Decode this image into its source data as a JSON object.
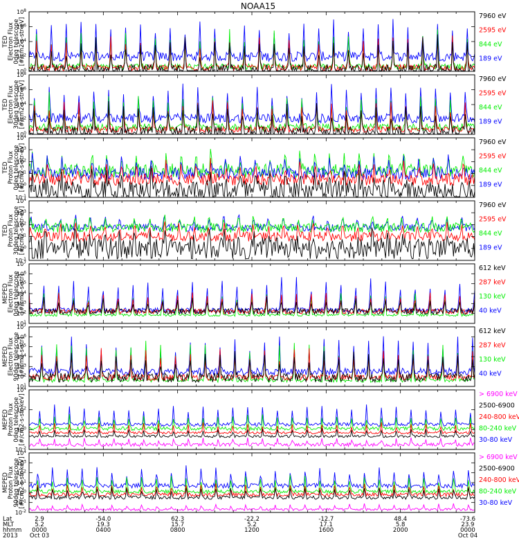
{
  "title": "NOAA15",
  "colors": {
    "blue": "#0000ff",
    "red": "#ff0000",
    "green": "#00ee00",
    "black": "#000000",
    "magenta": "#ff00ff"
  },
  "panels": [
    {
      "id": "ted-e-0",
      "ylabel": [
        "TED",
        "Electron Flux",
        "0deg telescope",
        "[#/cm2-s-str-eV]"
      ],
      "yticks": [
        "10^0",
        "10^2",
        "10^4",
        "10^6",
        "10^8"
      ],
      "legend": [
        {
          "text": "7960 eV",
          "color": "black"
        },
        {
          "text": "2595 eV",
          "color": "red"
        },
        {
          "text": "844 eV",
          "color": "green"
        },
        {
          "text": "189 eV",
          "color": "blue"
        }
      ],
      "series": [
        {
          "color": "blue",
          "base": 0.25,
          "peak": 0.85,
          "noise": 0.08
        },
        {
          "color": "green",
          "base": 0.08,
          "peak": 0.7,
          "noise": 0.05
        },
        {
          "color": "red",
          "base": 0.06,
          "peak": 0.6,
          "noise": 0.05
        },
        {
          "color": "black",
          "base": 0.0,
          "peak": 0.55,
          "noise": 0.12
        }
      ]
    },
    {
      "id": "ted-e-30",
      "ylabel": [
        "TED",
        "Electron Flux",
        "30deg telescope",
        "[#/cm2-s-str-eV]"
      ],
      "yticks": [
        "10^0",
        "10^2",
        "10^4",
        "10^6",
        "10^8"
      ],
      "legend": [
        {
          "text": "7960 eV",
          "color": "black"
        },
        {
          "text": "2595 eV",
          "color": "red"
        },
        {
          "text": "844 eV",
          "color": "green"
        },
        {
          "text": "189 eV",
          "color": "blue"
        }
      ],
      "series": [
        {
          "color": "blue",
          "base": 0.27,
          "peak": 0.85,
          "noise": 0.08
        },
        {
          "color": "green",
          "base": 0.12,
          "peak": 0.7,
          "noise": 0.06
        },
        {
          "color": "red",
          "base": 0.08,
          "peak": 0.6,
          "noise": 0.05
        },
        {
          "color": "black",
          "base": 0.02,
          "peak": 0.5,
          "noise": 0.12
        }
      ]
    },
    {
      "id": "ted-p-0",
      "ylabel": [
        "TED",
        "Proton Flux",
        "0deg telescope",
        "[#/cm2-s-str-eV]"
      ],
      "yticks": [
        "10^-1",
        "10^0",
        "10^1",
        "10^2",
        "10^3",
        "10^4"
      ],
      "legend": [
        {
          "text": "7960 eV",
          "color": "black"
        },
        {
          "text": "2595 eV",
          "color": "red"
        },
        {
          "text": "844 eV",
          "color": "green"
        },
        {
          "text": "189 eV",
          "color": "blue"
        }
      ],
      "series": [
        {
          "color": "green",
          "base": 0.45,
          "peak": 0.82,
          "noise": 0.12
        },
        {
          "color": "blue",
          "base": 0.4,
          "peak": 0.75,
          "noise": 0.1
        },
        {
          "color": "red",
          "base": 0.3,
          "peak": 0.65,
          "noise": 0.1
        },
        {
          "color": "black",
          "base": 0.1,
          "peak": 0.5,
          "noise": 0.2
        }
      ]
    },
    {
      "id": "ted-p-30",
      "ylabel": [
        "TED",
        "Proton Flux",
        "30deg telescope",
        "[#/cm2-s-str-eV]"
      ],
      "yticks": [
        "10^-1",
        "10^0",
        "10^1",
        "10^2",
        "10^3",
        "10^4"
      ],
      "legend": [
        {
          "text": "7960 eV",
          "color": "black"
        },
        {
          "text": "2595 eV",
          "color": "red"
        },
        {
          "text": "844 eV",
          "color": "green"
        },
        {
          "text": "189 eV",
          "color": "blue"
        }
      ],
      "series": [
        {
          "color": "blue",
          "base": 0.55,
          "peak": 0.82,
          "noise": 0.06
        },
        {
          "color": "green",
          "base": 0.55,
          "peak": 0.78,
          "noise": 0.08
        },
        {
          "color": "red",
          "base": 0.4,
          "peak": 0.7,
          "noise": 0.08
        },
        {
          "color": "black",
          "base": 0.2,
          "peak": 0.55,
          "noise": 0.18
        }
      ]
    },
    {
      "id": "meped-e-0",
      "ylabel": [
        "MEPED",
        "Electron Flux",
        "0deg telescope",
        "[#/cm2-s-str]"
      ],
      "yticks": [
        "10^1",
        "10^2",
        "10^3",
        "10^4",
        "10^5",
        "10^6",
        "10^7"
      ],
      "legend": [
        {
          "text": "612 keV",
          "color": "black"
        },
        {
          "text": "287 keV",
          "color": "red"
        },
        {
          "text": "130 keV",
          "color": "green"
        },
        {
          "text": "40 keV",
          "color": "blue"
        }
      ],
      "series": [
        {
          "color": "blue",
          "base": 0.22,
          "peak": 0.85,
          "noise": 0.04
        },
        {
          "color": "green",
          "base": 0.14,
          "peak": 0.6,
          "noise": 0.02
        },
        {
          "color": "red",
          "base": 0.2,
          "peak": 0.55,
          "noise": 0.04
        },
        {
          "color": "black",
          "base": 0.2,
          "peak": 0.45,
          "noise": 0.05
        }
      ]
    },
    {
      "id": "meped-e-90",
      "ylabel": [
        "MEPED",
        "Electron Flux",
        "90deg telescope",
        "[#/cm2-s-str]"
      ],
      "yticks": [
        "10^1",
        "10^2",
        "10^3",
        "10^4",
        "10^5",
        "10^6",
        "10^7"
      ],
      "legend": [
        {
          "text": "612 keV",
          "color": "black"
        },
        {
          "text": "287 keV",
          "color": "red"
        },
        {
          "text": "130 keV",
          "color": "green"
        },
        {
          "text": "40 keV",
          "color": "blue"
        }
      ],
      "series": [
        {
          "color": "blue",
          "base": 0.25,
          "peak": 0.85,
          "noise": 0.06
        },
        {
          "color": "green",
          "base": 0.1,
          "peak": 0.75,
          "noise": 0.03
        },
        {
          "color": "red",
          "base": 0.15,
          "peak": 0.65,
          "noise": 0.05
        },
        {
          "color": "black",
          "base": 0.15,
          "peak": 0.55,
          "noise": 0.08
        }
      ]
    },
    {
      "id": "meped-p-0",
      "ylabel": [
        "MEPED",
        "Proton Flux",
        "0deg telescope",
        "[#/cm2-s-str-keV]"
      ],
      "yticks": [
        "10^-2",
        "10^0",
        "10^2",
        "10^4"
      ],
      "legend": [
        {
          "text": "> 6900 keV",
          "color": "magenta"
        },
        {
          "text": "2500-6900",
          "color": "black"
        },
        {
          "text": "240-800 keV",
          "color": "red"
        },
        {
          "text": "80-240 keV",
          "color": "green"
        },
        {
          "text": "30-80 keV",
          "color": "blue"
        }
      ],
      "series": [
        {
          "color": "blue",
          "base": 0.42,
          "peak": 0.75,
          "noise": 0.03
        },
        {
          "color": "green",
          "base": 0.35,
          "peak": 0.6,
          "noise": 0.03
        },
        {
          "color": "red",
          "base": 0.28,
          "peak": 0.45,
          "noise": 0.02
        },
        {
          "color": "black",
          "base": 0.22,
          "peak": 0.35,
          "noise": 0.02
        },
        {
          "color": "magenta",
          "base": 0.08,
          "peak": 0.2,
          "noise": 0.03
        }
      ]
    },
    {
      "id": "meped-p-90",
      "ylabel": [
        "MEPED",
        "Proton Flux",
        "90deg telescope",
        "[#/cm2-s-str-keV]"
      ],
      "yticks": [
        "10^-2",
        "10^-1",
        "10^0",
        "10^1",
        "10^2",
        "10^3",
        "10^4"
      ],
      "legend": [
        {
          "text": "> 6900 keV",
          "color": "magenta"
        },
        {
          "text": "2500-6900",
          "color": "black"
        },
        {
          "text": "240-800 keV",
          "color": "red"
        },
        {
          "text": "80-240 keV",
          "color": "green"
        },
        {
          "text": "30-80 keV",
          "color": "blue"
        }
      ],
      "series": [
        {
          "color": "blue",
          "base": 0.45,
          "peak": 0.8,
          "noise": 0.04
        },
        {
          "color": "green",
          "base": 0.35,
          "peak": 0.65,
          "noise": 0.03
        },
        {
          "color": "red",
          "base": 0.3,
          "peak": 0.5,
          "noise": 0.03
        },
        {
          "color": "black",
          "base": 0.25,
          "peak": 0.45,
          "noise": 0.03
        },
        {
          "color": "magenta",
          "base": 0.05,
          "peak": 0.15,
          "noise": 0.02
        }
      ]
    }
  ],
  "xaxis": {
    "row_labels": [
      "Lat",
      "MLT",
      "hhmm",
      "2013"
    ],
    "ticks": [
      {
        "lat": "2.9",
        "mlt": "5.2",
        "hhmm": "0000",
        "date": "Oct 03"
      },
      {
        "lat": "-54.0",
        "mlt": "19.3",
        "hhmm": "0400",
        "date": ""
      },
      {
        "lat": "62.3",
        "mlt": "15.7",
        "hhmm": "0800",
        "date": ""
      },
      {
        "lat": "-22.2",
        "mlt": "5.2",
        "hhmm": "1200",
        "date": ""
      },
      {
        "lat": "-12.7",
        "mlt": "17.1",
        "hhmm": "1600",
        "date": ""
      },
      {
        "lat": "48.4",
        "mlt": "5.8",
        "hhmm": "2000",
        "date": ""
      },
      {
        "lat": "-73.6",
        "mlt": "23.9",
        "hhmm": "0000",
        "date": "Oct 04"
      }
    ]
  },
  "chart_data": {
    "type": "line",
    "title": "NOAA15",
    "x_range": [
      "2013 Oct 03 0000",
      "2013 Oct 04 0000"
    ],
    "n_orbits": 15,
    "panels": [
      {
        "ylabel": "TED Electron Flux 0deg telescope [#/cm2-s-str-eV]",
        "ylim_log10": [
          0,
          8
        ],
        "series": [
          "7960 eV",
          "2595 eV",
          "844 eV",
          "189 eV"
        ]
      },
      {
        "ylabel": "TED Electron Flux 30deg telescope [#/cm2-s-str-eV]",
        "ylim_log10": [
          0,
          8
        ],
        "series": [
          "7960 eV",
          "2595 eV",
          "844 eV",
          "189 eV"
        ]
      },
      {
        "ylabel": "TED Proton Flux 0deg telescope [#/cm2-s-str-eV]",
        "ylim_log10": [
          -1,
          4
        ],
        "series": [
          "7960 eV",
          "2595 eV",
          "844 eV",
          "189 eV"
        ]
      },
      {
        "ylabel": "TED Proton Flux 30deg telescope [#/cm2-s-str-eV]",
        "ylim_log10": [
          -1,
          4
        ],
        "series": [
          "7960 eV",
          "2595 eV",
          "844 eV",
          "189 eV"
        ]
      },
      {
        "ylabel": "MEPED Electron Flux 0deg telescope [#/cm2-s-str]",
        "ylim_log10": [
          1,
          7
        ],
        "series": [
          "612 keV",
          "287 keV",
          "130 keV",
          "40 keV"
        ]
      },
      {
        "ylabel": "MEPED Electron Flux 90deg telescope [#/cm2-s-str]",
        "ylim_log10": [
          1,
          7
        ],
        "series": [
          "612 keV",
          "287 keV",
          "130 keV",
          "40 keV"
        ]
      },
      {
        "ylabel": "MEPED Proton Flux 0deg telescope [#/cm2-s-str-keV]",
        "ylim_log10": [
          -2,
          4
        ],
        "series": [
          "> 6900 keV",
          "2500-6900",
          "240-800 keV",
          "80-240 keV",
          "30-80 keV"
        ]
      },
      {
        "ylabel": "MEPED Proton Flux 90deg telescope [#/cm2-s-str-keV]",
        "ylim_log10": [
          -2,
          4
        ],
        "series": [
          "> 6900 keV",
          "2500-6900",
          "240-800 keV",
          "80-240 keV",
          "30-80 keV"
        ]
      }
    ]
  }
}
